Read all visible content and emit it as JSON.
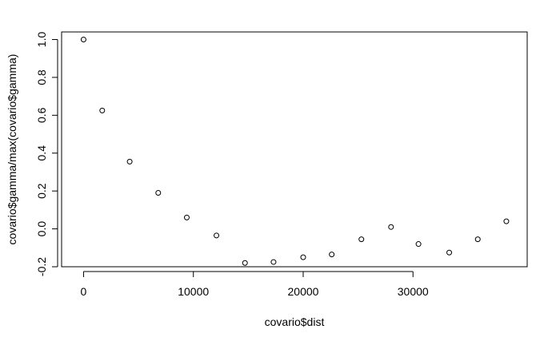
{
  "chart_data": {
    "type": "scatter",
    "title": "",
    "xlabel": "covario$dist",
    "ylabel": "covario$gamma/max(covario$gamma)",
    "xlim": [
      -2000,
      40400
    ],
    "ylim": [
      -0.2,
      1.04
    ],
    "x_ticks": [
      0,
      10000,
      20000,
      30000
    ],
    "x_tick_labels": [
      "0",
      "10000",
      "20000",
      "30000"
    ],
    "y_ticks": [
      -0.2,
      0.0,
      0.2,
      0.4,
      0.6,
      0.8,
      1.0
    ],
    "y_tick_labels": [
      "-0.2",
      "0.0",
      "0.2",
      "0.4",
      "0.6",
      "0.8",
      "1.0"
    ],
    "grid": false,
    "marker": "open-circle",
    "series": [
      {
        "x": [
          0,
          1700,
          4200,
          6800,
          9400,
          12100,
          14700,
          17300,
          20000,
          22600,
          25300,
          28000,
          30500,
          33300,
          35900,
          38500
        ],
        "y": [
          1.0,
          0.625,
          0.355,
          0.19,
          0.06,
          -0.035,
          -0.18,
          -0.175,
          -0.15,
          -0.135,
          -0.055,
          0.01,
          -0.08,
          -0.125,
          -0.055,
          0.04
        ]
      }
    ]
  }
}
